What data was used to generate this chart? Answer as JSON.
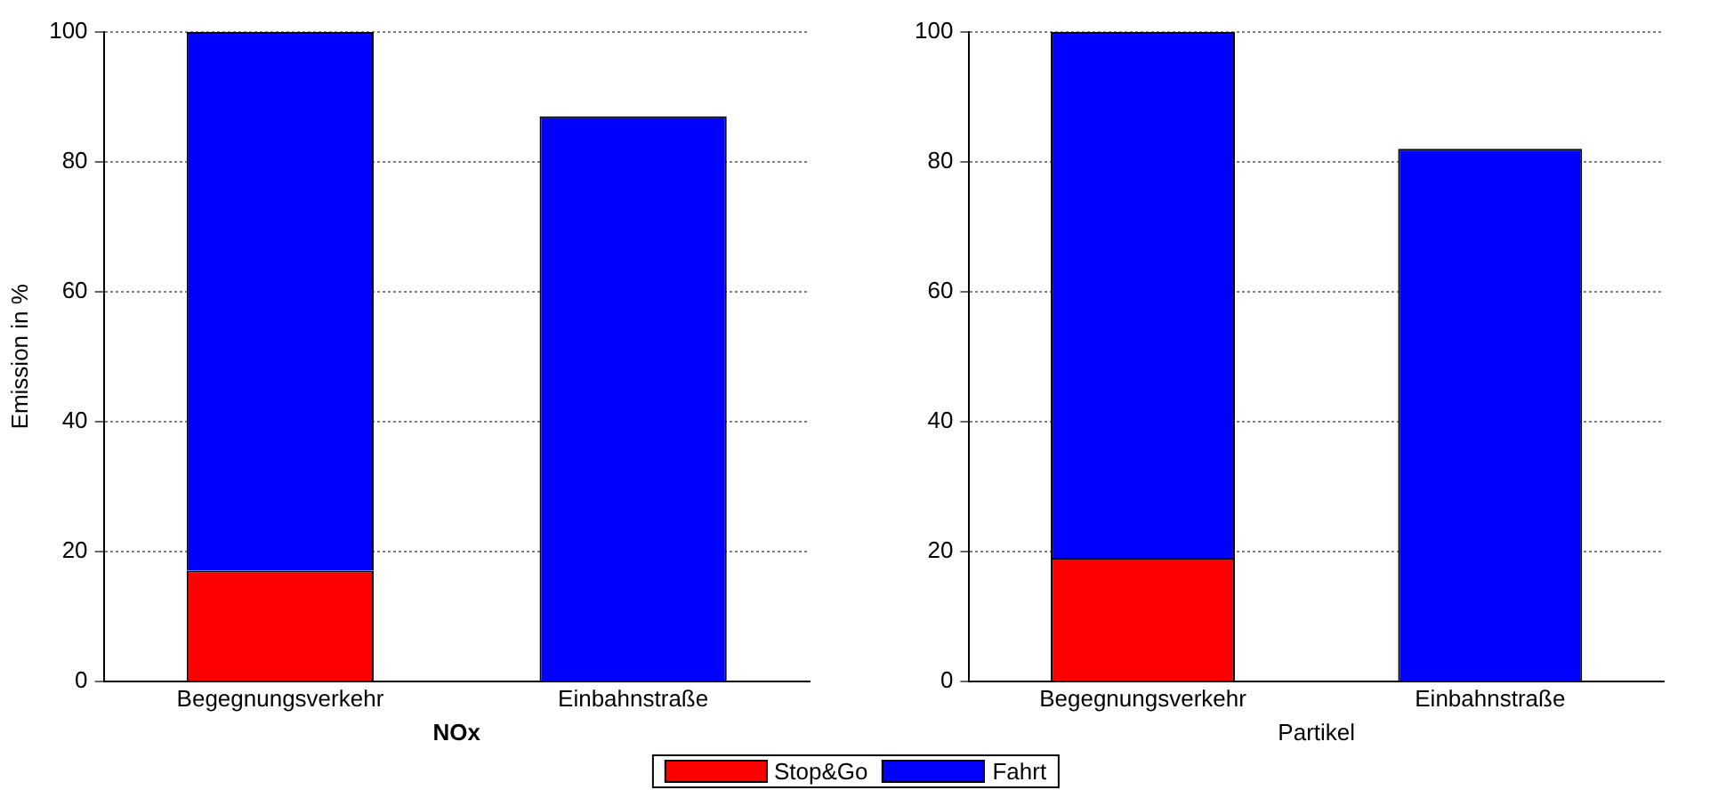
{
  "chart_data": [
    {
      "type": "bar",
      "stacked": true,
      "categories": [
        "Begegnungsverkehr",
        "Einbahnstraße"
      ],
      "xlabel": "NOx",
      "ylabel": "Emission in %",
      "ylim": [
        0,
        100
      ],
      "yticks": [
        0,
        20,
        40,
        60,
        80,
        100
      ],
      "grid": "y",
      "legend": "bottom",
      "series": [
        {
          "name": "Stop&Go",
          "color": "#ff0000",
          "values": [
            17,
            0
          ]
        },
        {
          "name": "Fahrt",
          "color": "#0000ff",
          "values": [
            83,
            87
          ]
        }
      ]
    },
    {
      "type": "bar",
      "stacked": true,
      "categories": [
        "Begegnungsverkehr",
        "Einbahnstraße"
      ],
      "xlabel": "Partikel",
      "ylim": [
        0,
        100
      ],
      "yticks": [
        0,
        20,
        40,
        60,
        80,
        100
      ],
      "grid": "y",
      "legend": "bottom",
      "series": [
        {
          "name": "Stop&Go",
          "color": "#ff0000",
          "values": [
            19,
            0
          ]
        },
        {
          "name": "Fahrt",
          "color": "#0000ff",
          "values": [
            81,
            82
          ]
        }
      ]
    }
  ]
}
